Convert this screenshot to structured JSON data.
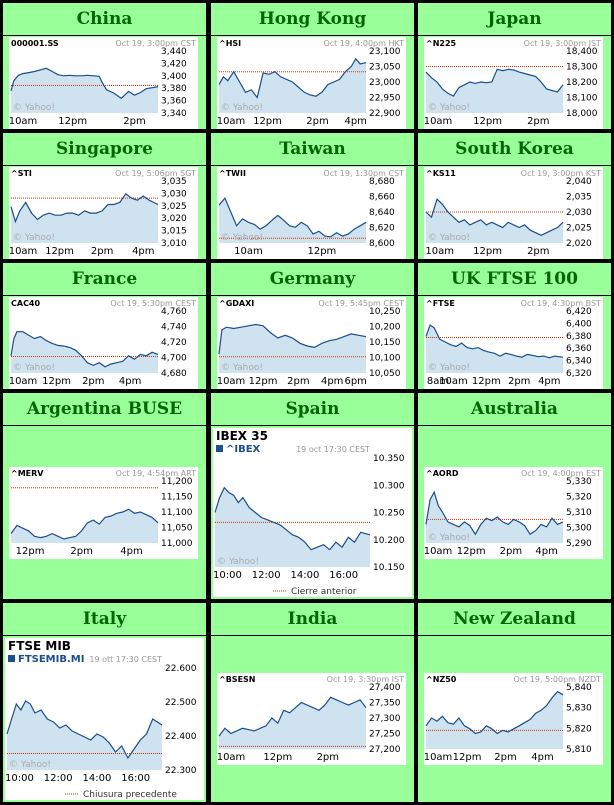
{
  "colors": {
    "cell_background": "#99ff99",
    "title_text": "#006600",
    "line": "#1a4f8a",
    "fill": "#cfe2ef",
    "reference_line": "#cc3300"
  },
  "chart_data": [
    {
      "type": "line",
      "title": "China",
      "symbol": "000001.SS",
      "date": "Oct 19, 3:00pm CST",
      "yticks": [
        "3,440",
        "3,420",
        "3,400",
        "3,380",
        "3,360",
        "3,340"
      ],
      "ylim": [
        3335,
        3450
      ],
      "xticks": [
        "10am",
        "12pm",
        "2pm"
      ],
      "xtick_pos": [
        0,
        0.42,
        0.84
      ],
      "ref": 3386,
      "watermark": "© Yahoo!",
      "x": [
        0,
        0.02,
        0.05,
        0.08,
        0.12,
        0.16,
        0.2,
        0.24,
        0.28,
        0.32,
        0.36,
        0.4,
        0.44,
        0.48,
        0.52,
        0.56,
        0.6,
        0.62,
        0.65,
        0.7,
        0.75,
        0.8,
        0.84,
        0.88,
        0.92,
        0.96,
        1
      ],
      "y": [
        3376,
        3395,
        3405,
        3408,
        3410,
        3412,
        3415,
        3418,
        3412,
        3406,
        3404,
        3405,
        3404,
        3404,
        3405,
        3404,
        3403,
        3392,
        3378,
        3372,
        3362,
        3375,
        3368,
        3373,
        3380,
        3382,
        3384
      ]
    },
    {
      "type": "line",
      "title": "Hong Kong",
      "symbol": "^HSI",
      "date": "Oct 19, 4:00pm HKT",
      "yticks": [
        "23,100",
        "23,050",
        "23,000",
        "22,950",
        "22,900"
      ],
      "ylim": [
        22880,
        23120
      ],
      "xticks": [
        "10am",
        "12pm",
        "2pm",
        "4pm"
      ],
      "xtick_pos": [
        0,
        0.33,
        0.67,
        0.93
      ],
      "ref": 23040,
      "watermark": "© Yahoo!",
      "x": [
        0,
        0.03,
        0.06,
        0.1,
        0.14,
        0.18,
        0.22,
        0.26,
        0.3,
        0.34,
        0.38,
        0.42,
        0.46,
        0.5,
        0.54,
        0.58,
        0.62,
        0.66,
        0.7,
        0.74,
        0.78,
        0.82,
        0.86,
        0.9,
        0.93,
        0.96,
        1
      ],
      "y": [
        22990,
        23020,
        23005,
        23040,
        23000,
        22960,
        22970,
        22940,
        23035,
        23030,
        23040,
        23020,
        23010,
        23000,
        22980,
        22960,
        22950,
        22945,
        22960,
        22990,
        23000,
        23010,
        23040,
        23060,
        23090,
        23070,
        23075
      ]
    },
    {
      "type": "line",
      "title": "Japan",
      "symbol": "^N225",
      "date": "Oct 19, 3:00pm JST",
      "yticks": [
        "18,400",
        "18,300",
        "18,200",
        "18,100",
        "18,000"
      ],
      "ylim": [
        17980,
        18420
      ],
      "xticks": [
        "10am",
        "12pm",
        "2pm"
      ],
      "xtick_pos": [
        0.08,
        0.45,
        0.82
      ],
      "ref": 18310,
      "watermark": "© Yahoo!",
      "x": [
        0,
        0.04,
        0.08,
        0.12,
        0.16,
        0.2,
        0.24,
        0.28,
        0.32,
        0.36,
        0.4,
        0.44,
        0.48,
        0.52,
        0.56,
        0.6,
        0.64,
        0.68,
        0.72,
        0.76,
        0.8,
        0.84,
        0.88,
        0.92,
        0.96,
        1
      ],
      "y": [
        18270,
        18230,
        18200,
        18150,
        18120,
        18100,
        18160,
        18180,
        18200,
        18190,
        18200,
        18195,
        18200,
        18290,
        18280,
        18290,
        18285,
        18270,
        18260,
        18250,
        18240,
        18200,
        18150,
        18140,
        18130,
        18180
      ]
    },
    {
      "type": "line",
      "title": "Singapore",
      "symbol": "^STI",
      "date": "Oct 19, 5:06pm SGT",
      "yticks": [
        "3,035",
        "3,030",
        "3,025",
        "3,020",
        "3,015",
        "3,010"
      ],
      "ylim": [
        3008,
        3037
      ],
      "xticks": [
        "10am",
        "12pm",
        "2pm",
        "4pm"
      ],
      "xtick_pos": [
        0.06,
        0.33,
        0.62,
        0.9
      ],
      "ref": 3029,
      "watermark": "© Yahoo!",
      "x": [
        0,
        0.03,
        0.06,
        0.1,
        0.14,
        0.18,
        0.22,
        0.26,
        0.3,
        0.34,
        0.38,
        0.42,
        0.46,
        0.5,
        0.54,
        0.58,
        0.62,
        0.66,
        0.7,
        0.74,
        0.78,
        0.82,
        0.86,
        0.9,
        0.94,
        0.97,
        1
      ],
      "y": [
        3025,
        3018,
        3023,
        3027,
        3022,
        3019,
        3021,
        3022,
        3021,
        3021,
        3022,
        3022,
        3021,
        3023,
        3022,
        3022,
        3023,
        3026,
        3026,
        3027,
        3031,
        3029,
        3028,
        3030,
        3028,
        3027,
        3026
      ]
    },
    {
      "type": "line",
      "title": "Taiwan",
      "symbol": "^TWII",
      "date": "Oct 19, 1:30pm CST",
      "yticks": [
        "8,680",
        "8,660",
        "8,640",
        "8,620",
        "8,600"
      ],
      "ylim": [
        8595,
        8685
      ],
      "xticks": [
        "10am",
        "12pm"
      ],
      "xtick_pos": [
        0.2,
        0.7
      ],
      "ref": 8602,
      "watermark": "© Yahoo!",
      "x": [
        0,
        0.04,
        0.08,
        0.12,
        0.16,
        0.2,
        0.24,
        0.28,
        0.32,
        0.36,
        0.4,
        0.44,
        0.48,
        0.52,
        0.56,
        0.6,
        0.64,
        0.68,
        0.72,
        0.76,
        0.8,
        0.84,
        0.88,
        0.92,
        0.96,
        1
      ],
      "y": [
        8650,
        8660,
        8640,
        8620,
        8630,
        8625,
        8622,
        8615,
        8620,
        8628,
        8635,
        8628,
        8620,
        8618,
        8625,
        8620,
        8608,
        8612,
        8605,
        8604,
        8610,
        8605,
        8608,
        8615,
        8620,
        8625
      ]
    },
    {
      "type": "line",
      "title": "South Korea",
      "symbol": "^KS11",
      "date": "Oct 19, 3:00pm KST",
      "yticks": [
        "2,040",
        "2,035",
        "2,030",
        "2,025",
        "2,020"
      ],
      "ylim": [
        2018,
        2042
      ],
      "xticks": [
        "10am",
        "12pm",
        "2pm"
      ],
      "xtick_pos": [
        0.1,
        0.45,
        0.82
      ],
      "ref": 2030,
      "watermark": "© Yahoo!",
      "x": [
        0,
        0.04,
        0.08,
        0.12,
        0.16,
        0.2,
        0.24,
        0.28,
        0.32,
        0.36,
        0.4,
        0.44,
        0.48,
        0.52,
        0.56,
        0.6,
        0.64,
        0.68,
        0.72,
        0.76,
        0.8,
        0.84,
        0.88,
        0.92,
        0.96,
        1
      ],
      "y": [
        2030,
        2028,
        2035,
        2033,
        2030,
        2028,
        2026,
        2027,
        2025,
        2026,
        2027,
        2025,
        2026,
        2025,
        2024,
        2026,
        2025,
        2024,
        2025,
        2023,
        2022,
        2021,
        2022,
        2023,
        2024,
        2026
      ]
    },
    {
      "type": "line",
      "title": "France",
      "symbol": "CAC40",
      "date": "Oct 19, 5:30pm CEST",
      "yticks": [
        "4,760",
        "4,740",
        "4,720",
        "4,700",
        "4,680"
      ],
      "ylim": [
        4675,
        4765
      ],
      "xticks": [
        "10am",
        "12pm",
        "2pm",
        "4pm"
      ],
      "xtick_pos": [
        0.08,
        0.31,
        0.56,
        0.81
      ],
      "ref": 4699,
      "watermark": "© Yahoo!",
      "x": [
        0,
        0.02,
        0.04,
        0.08,
        0.12,
        0.16,
        0.2,
        0.24,
        0.28,
        0.32,
        0.36,
        0.4,
        0.44,
        0.48,
        0.52,
        0.56,
        0.6,
        0.64,
        0.68,
        0.72,
        0.76,
        0.8,
        0.84,
        0.88,
        0.92,
        0.96,
        1
      ],
      "y": [
        4700,
        4725,
        4735,
        4735,
        4730,
        4725,
        4728,
        4722,
        4718,
        4715,
        4714,
        4712,
        4708,
        4700,
        4690,
        4686,
        4690,
        4684,
        4688,
        4690,
        4692,
        4700,
        4695,
        4702,
        4700,
        4705,
        4702
      ]
    },
    {
      "type": "line",
      "title": "Germany",
      "symbol": "^GDAXI",
      "date": "Oct 19, 5:45pm CEST",
      "yticks": [
        "10,250",
        "10,200",
        "10,150",
        "10,100",
        "10,050"
      ],
      "ylim": [
        10040,
        10270
      ],
      "xticks": [
        "10am",
        "12pm",
        "2pm",
        "4pm",
        "6pm"
      ],
      "xtick_pos": [
        0.06,
        0.3,
        0.54,
        0.77,
        0.93
      ],
      "ref": 10100,
      "watermark": "© Yahoo!",
      "x": [
        0,
        0.02,
        0.05,
        0.1,
        0.15,
        0.2,
        0.25,
        0.3,
        0.35,
        0.4,
        0.45,
        0.5,
        0.55,
        0.6,
        0.65,
        0.7,
        0.75,
        0.8,
        0.85,
        0.9,
        0.95,
        1
      ],
      "y": [
        10110,
        10200,
        10210,
        10205,
        10210,
        10215,
        10220,
        10215,
        10190,
        10170,
        10180,
        10170,
        10150,
        10140,
        10135,
        10150,
        10160,
        10165,
        10175,
        10185,
        10180,
        10175
      ]
    },
    {
      "type": "line",
      "title": "UK FTSE 100",
      "symbol": "^FTSE",
      "date": "Oct 19, 4:30pm BST",
      "yticks": [
        "6,420",
        "6,400",
        "6,380",
        "6,360",
        "6,340",
        "6,320"
      ],
      "ylim": [
        6315,
        6425
      ],
      "xticks": [
        "8am",
        "10am",
        "12pm",
        "2pm",
        "4pm"
      ],
      "xtick_pos": [
        0.03,
        0.2,
        0.44,
        0.68,
        0.9
      ],
      "ref": 6378,
      "watermark": "© Yahoo!",
      "x": [
        0,
        0.03,
        0.06,
        0.1,
        0.14,
        0.18,
        0.22,
        0.26,
        0.3,
        0.34,
        0.38,
        0.42,
        0.46,
        0.5,
        0.54,
        0.58,
        0.62,
        0.66,
        0.7,
        0.74,
        0.78,
        0.82,
        0.86,
        0.9,
        0.94,
        1
      ],
      "y": [
        6380,
        6400,
        6395,
        6375,
        6370,
        6365,
        6362,
        6368,
        6360,
        6358,
        6360,
        6355,
        6352,
        6350,
        6345,
        6350,
        6348,
        6345,
        6343,
        6348,
        6346,
        6344,
        6345,
        6342,
        6345,
        6343
      ]
    },
    {
      "type": "line",
      "title": "Argentina BUSE",
      "symbol": "^MERV",
      "date": "Oct 19, 4:54pm ART",
      "yticks": [
        "11,200",
        "11,150",
        "11,100",
        "11,050",
        "11,000"
      ],
      "ylim": [
        10985,
        11215
      ],
      "xticks": [
        "12pm",
        "2pm",
        "4pm"
      ],
      "xtick_pos": [
        0.13,
        0.48,
        0.82
      ],
      "ref": 11190,
      "watermark": "",
      "x": [
        0,
        0.04,
        0.08,
        0.12,
        0.16,
        0.2,
        0.24,
        0.28,
        0.32,
        0.36,
        0.4,
        0.44,
        0.48,
        0.52,
        0.56,
        0.6,
        0.64,
        0.68,
        0.72,
        0.76,
        0.8,
        0.84,
        0.88,
        0.92,
        0.96,
        1
      ],
      "y": [
        11020,
        11050,
        11040,
        11030,
        11010,
        11005,
        11010,
        11020,
        11010,
        11000,
        11005,
        11010,
        11030,
        11060,
        11070,
        11055,
        11080,
        11085,
        11095,
        11100,
        11110,
        11095,
        11100,
        11090,
        11080,
        11060
      ]
    },
    {
      "type": "line",
      "title": "Spain",
      "big": true,
      "big_title": "IBEX 35",
      "symbol": "^IBEX",
      "date": "19 oct 17:30 CEST",
      "yticks": [
        "10.350",
        "10.300",
        "10.250",
        "10.200",
        "10.150"
      ],
      "ylim": [
        10140,
        10360
      ],
      "xticks": [
        "10:00",
        "12:00",
        "14:00",
        "16:00"
      ],
      "xtick_pos": [
        0.08,
        0.33,
        0.58,
        0.83
      ],
      "ref": 10230,
      "watermark": "© Yahoo!",
      "legend": "Cierre anterior",
      "x": [
        0,
        0.03,
        0.06,
        0.09,
        0.12,
        0.15,
        0.18,
        0.22,
        0.26,
        0.3,
        0.34,
        0.38,
        0.42,
        0.46,
        0.5,
        0.54,
        0.58,
        0.62,
        0.66,
        0.7,
        0.74,
        0.78,
        0.82,
        0.86,
        0.9,
        0.94,
        1
      ],
      "y": [
        10250,
        10280,
        10300,
        10290,
        10285,
        10270,
        10280,
        10260,
        10250,
        10240,
        10235,
        10230,
        10225,
        10215,
        10205,
        10200,
        10190,
        10175,
        10180,
        10185,
        10175,
        10190,
        10180,
        10200,
        10190,
        10210,
        10205
      ]
    },
    {
      "type": "line",
      "title": "Australia",
      "symbol": "^AORD",
      "date": "Oct 19, 4:00pm EST",
      "yticks": [
        "5,330",
        "5,320",
        "5,310",
        "5,300",
        "5,290"
      ],
      "ylim": [
        5285,
        5335
      ],
      "xticks": [
        "10am",
        "12pm",
        "2pm",
        "4pm"
      ],
      "xtick_pos": [
        0.04,
        0.33,
        0.62,
        0.88
      ],
      "ref": 5304,
      "watermark": "© Yahoo!",
      "x": [
        0,
        0.03,
        0.06,
        0.09,
        0.12,
        0.16,
        0.2,
        0.24,
        0.28,
        0.32,
        0.36,
        0.4,
        0.44,
        0.48,
        0.52,
        0.56,
        0.6,
        0.64,
        0.68,
        0.72,
        0.76,
        0.8,
        0.84,
        0.88,
        0.92,
        0.96,
        1
      ],
      "y": [
        5300,
        5320,
        5326,
        5315,
        5310,
        5302,
        5300,
        5298,
        5302,
        5299,
        5292,
        5300,
        5305,
        5303,
        5306,
        5302,
        5300,
        5304,
        5302,
        5299,
        5292,
        5295,
        5300,
        5298,
        5305,
        5300,
        5302
      ]
    },
    {
      "type": "line",
      "title": "Italy",
      "big": true,
      "big_title": "FTSE MIB",
      "symbol": "FTSEMIB.MI",
      "date": "19 ott 17:30 CEST",
      "yticks": [
        "22.600",
        "22.500",
        "22.400",
        "22.300"
      ],
      "ylim": [
        22280,
        22620
      ],
      "xticks": [
        "10:00",
        "12:00",
        "14:00",
        "16:00"
      ],
      "xtick_pos": [
        0.08,
        0.33,
        0.58,
        0.83
      ],
      "ref": 22335,
      "watermark": "© Yahoo!",
      "legend": "Chiusura precedente",
      "x": [
        0,
        0.03,
        0.06,
        0.09,
        0.12,
        0.15,
        0.18,
        0.22,
        0.26,
        0.3,
        0.34,
        0.38,
        0.42,
        0.46,
        0.5,
        0.54,
        0.58,
        0.62,
        0.66,
        0.7,
        0.74,
        0.78,
        0.82,
        0.86,
        0.9,
        0.94,
        1
      ],
      "y": [
        22400,
        22450,
        22500,
        22480,
        22510,
        22500,
        22470,
        22480,
        22450,
        22440,
        22420,
        22430,
        22410,
        22400,
        22390,
        22380,
        22400,
        22390,
        22370,
        22340,
        22360,
        22320,
        22350,
        22380,
        22400,
        22450,
        22430
      ]
    },
    {
      "type": "line",
      "title": "India",
      "symbol": "^BSESN",
      "date": "Oct 19, 3:30pm IST",
      "yticks": [
        "27,400",
        "27,350",
        "27,300",
        "27,250",
        "27,200"
      ],
      "ylim": [
        27180,
        27420
      ],
      "xticks": [
        "10am",
        "12pm",
        "2pm"
      ],
      "xtick_pos": [
        0.06,
        0.4,
        0.74
      ],
      "ref": 27190,
      "watermark": "",
      "x": [
        0,
        0.04,
        0.08,
        0.12,
        0.16,
        0.2,
        0.24,
        0.28,
        0.32,
        0.36,
        0.4,
        0.44,
        0.48,
        0.52,
        0.56,
        0.6,
        0.64,
        0.68,
        0.72,
        0.76,
        0.8,
        0.84,
        0.88,
        0.92,
        0.96,
        1
      ],
      "y": [
        27230,
        27260,
        27240,
        27250,
        27260,
        27255,
        27250,
        27260,
        27270,
        27300,
        27280,
        27330,
        27320,
        27340,
        27360,
        27350,
        27340,
        27330,
        27350,
        27380,
        27370,
        27360,
        27350,
        27360,
        27370,
        27340
      ]
    },
    {
      "type": "line",
      "title": "New Zealand",
      "symbol": "^NZ50",
      "date": "Oct 19, 5:00pm NZDT",
      "yticks": [
        "5,840",
        "5,830",
        "5,820",
        "5,810"
      ],
      "ylim": [
        5805,
        5845
      ],
      "xticks": [
        "10am",
        "12pm",
        "2pm",
        "4pm"
      ],
      "xtick_pos": [
        0.04,
        0.3,
        0.58,
        0.85
      ],
      "ref": 5817,
      "watermark": "",
      "x": [
        0,
        0.04,
        0.08,
        0.12,
        0.16,
        0.2,
        0.24,
        0.28,
        0.32,
        0.36,
        0.4,
        0.44,
        0.48,
        0.52,
        0.56,
        0.6,
        0.64,
        0.68,
        0.72,
        0.76,
        0.8,
        0.84,
        0.88,
        0.92,
        0.96,
        1
      ],
      "y": [
        5820,
        5825,
        5823,
        5826,
        5822,
        5821,
        5825,
        5820,
        5818,
        5815,
        5816,
        5820,
        5818,
        5815,
        5817,
        5816,
        5818,
        5820,
        5822,
        5824,
        5828,
        5830,
        5833,
        5838,
        5842,
        5840
      ]
    }
  ]
}
